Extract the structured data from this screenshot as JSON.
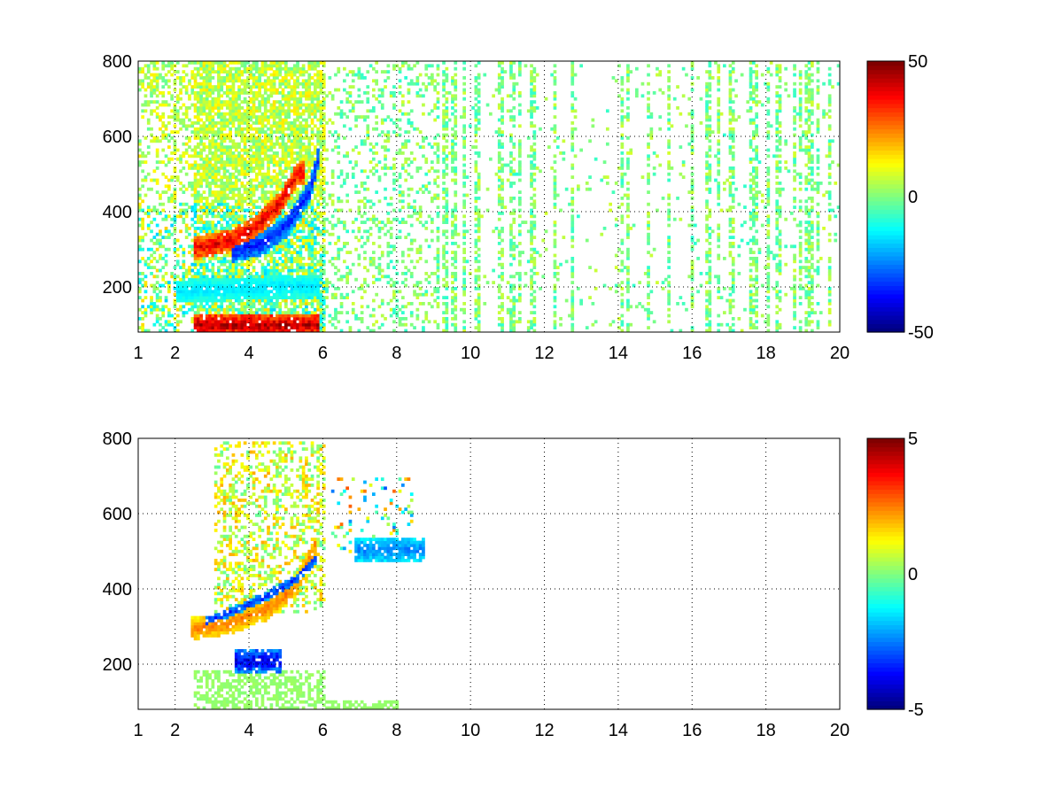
{
  "chart_data": [
    {
      "type": "heatmap",
      "panel": "top",
      "xlim": [
        1,
        20
      ],
      "ylim": [
        80,
        800
      ],
      "xticks": [
        1,
        2,
        4,
        6,
        8,
        10,
        12,
        14,
        16,
        18,
        20
      ],
      "xtick_labels": [
        "1",
        "2",
        "4",
        "6",
        "8",
        "10",
        "12",
        "14",
        "16",
        "18",
        "20"
      ],
      "yticks": [
        200,
        400,
        600,
        800
      ],
      "ytick_labels": [
        "200",
        "400",
        "600",
        "800"
      ],
      "grid": true,
      "colormap": "jet",
      "colorbar": {
        "range": [
          -50,
          50
        ],
        "tick_labels": [
          "50",
          "0",
          "-50"
        ],
        "ticks": [
          50,
          0,
          -50
        ]
      },
      "features": [
        {
          "desc": "positive ridge",
          "x_range": [
            2.5,
            5.5
          ],
          "y_path": [
            [
              2.5,
              300
            ],
            [
              3.5,
              320
            ],
            [
              4.2,
              360
            ],
            [
              4.8,
              420
            ],
            [
              5.3,
              500
            ]
          ],
          "value": 40
        },
        {
          "desc": "negative ridge",
          "x_range": [
            3.5,
            5.9
          ],
          "y_path": [
            [
              3.5,
              290
            ],
            [
              4.3,
              310
            ],
            [
              5.0,
              360
            ],
            [
              5.6,
              450
            ],
            [
              5.9,
              560
            ]
          ],
          "value": -35
        },
        {
          "desc": "strong bottom band",
          "x_range": [
            2.5,
            5.9
          ],
          "y_path": [
            [
              2.5,
              95
            ],
            [
              5.9,
              95
            ]
          ],
          "value": 45
        },
        {
          "desc": "band near 200",
          "x_range": [
            2.0,
            5.9
          ],
          "y_path": [
            [
              2.0,
              185
            ],
            [
              5.9,
              200
            ]
          ],
          "value": -15
        }
      ]
    },
    {
      "type": "heatmap",
      "panel": "bottom",
      "xlim": [
        1,
        20
      ],
      "ylim": [
        80,
        800
      ],
      "xticks": [
        1,
        2,
        4,
        6,
        8,
        10,
        12,
        14,
        16,
        18,
        20
      ],
      "xtick_labels": [
        "1",
        "2",
        "4",
        "6",
        "8",
        "10",
        "12",
        "14",
        "16",
        "18",
        "20"
      ],
      "yticks": [
        200,
        400,
        600,
        800
      ],
      "ytick_labels": [
        "200",
        "400",
        "600",
        "800"
      ],
      "grid": true,
      "colormap": "jet",
      "colorbar": {
        "range": [
          -5,
          5
        ],
        "tick_labels": [
          "5",
          "0",
          "-5"
        ],
        "ticks": [
          5,
          0,
          -5
        ]
      },
      "features": [
        {
          "desc": "negative thin ridge",
          "x_range": [
            2.8,
            5.8
          ],
          "y_path": [
            [
              2.8,
              310
            ],
            [
              3.6,
              340
            ],
            [
              4.4,
              375
            ],
            [
              5.2,
              420
            ],
            [
              5.8,
              480
            ]
          ],
          "value": -3.5
        },
        {
          "desc": "positive ridge",
          "x_range": [
            2.4,
            5.8
          ],
          "y_path": [
            [
              2.4,
              290
            ],
            [
              3.4,
              305
            ],
            [
              4.4,
              340
            ],
            [
              5.2,
              400
            ],
            [
              5.8,
              520
            ]
          ],
          "value": 2.5
        },
        {
          "desc": "negative patch",
          "x_range": [
            6.8,
            8.7
          ],
          "y_path": [
            [
              6.8,
              500
            ],
            [
              8.7,
              500
            ]
          ],
          "value": -2.5
        },
        {
          "desc": "negative band near 200",
          "x_range": [
            3.6,
            4.8
          ],
          "y_path": [
            [
              3.6,
              205
            ],
            [
              4.8,
              205
            ]
          ],
          "value": -4
        }
      ]
    }
  ]
}
